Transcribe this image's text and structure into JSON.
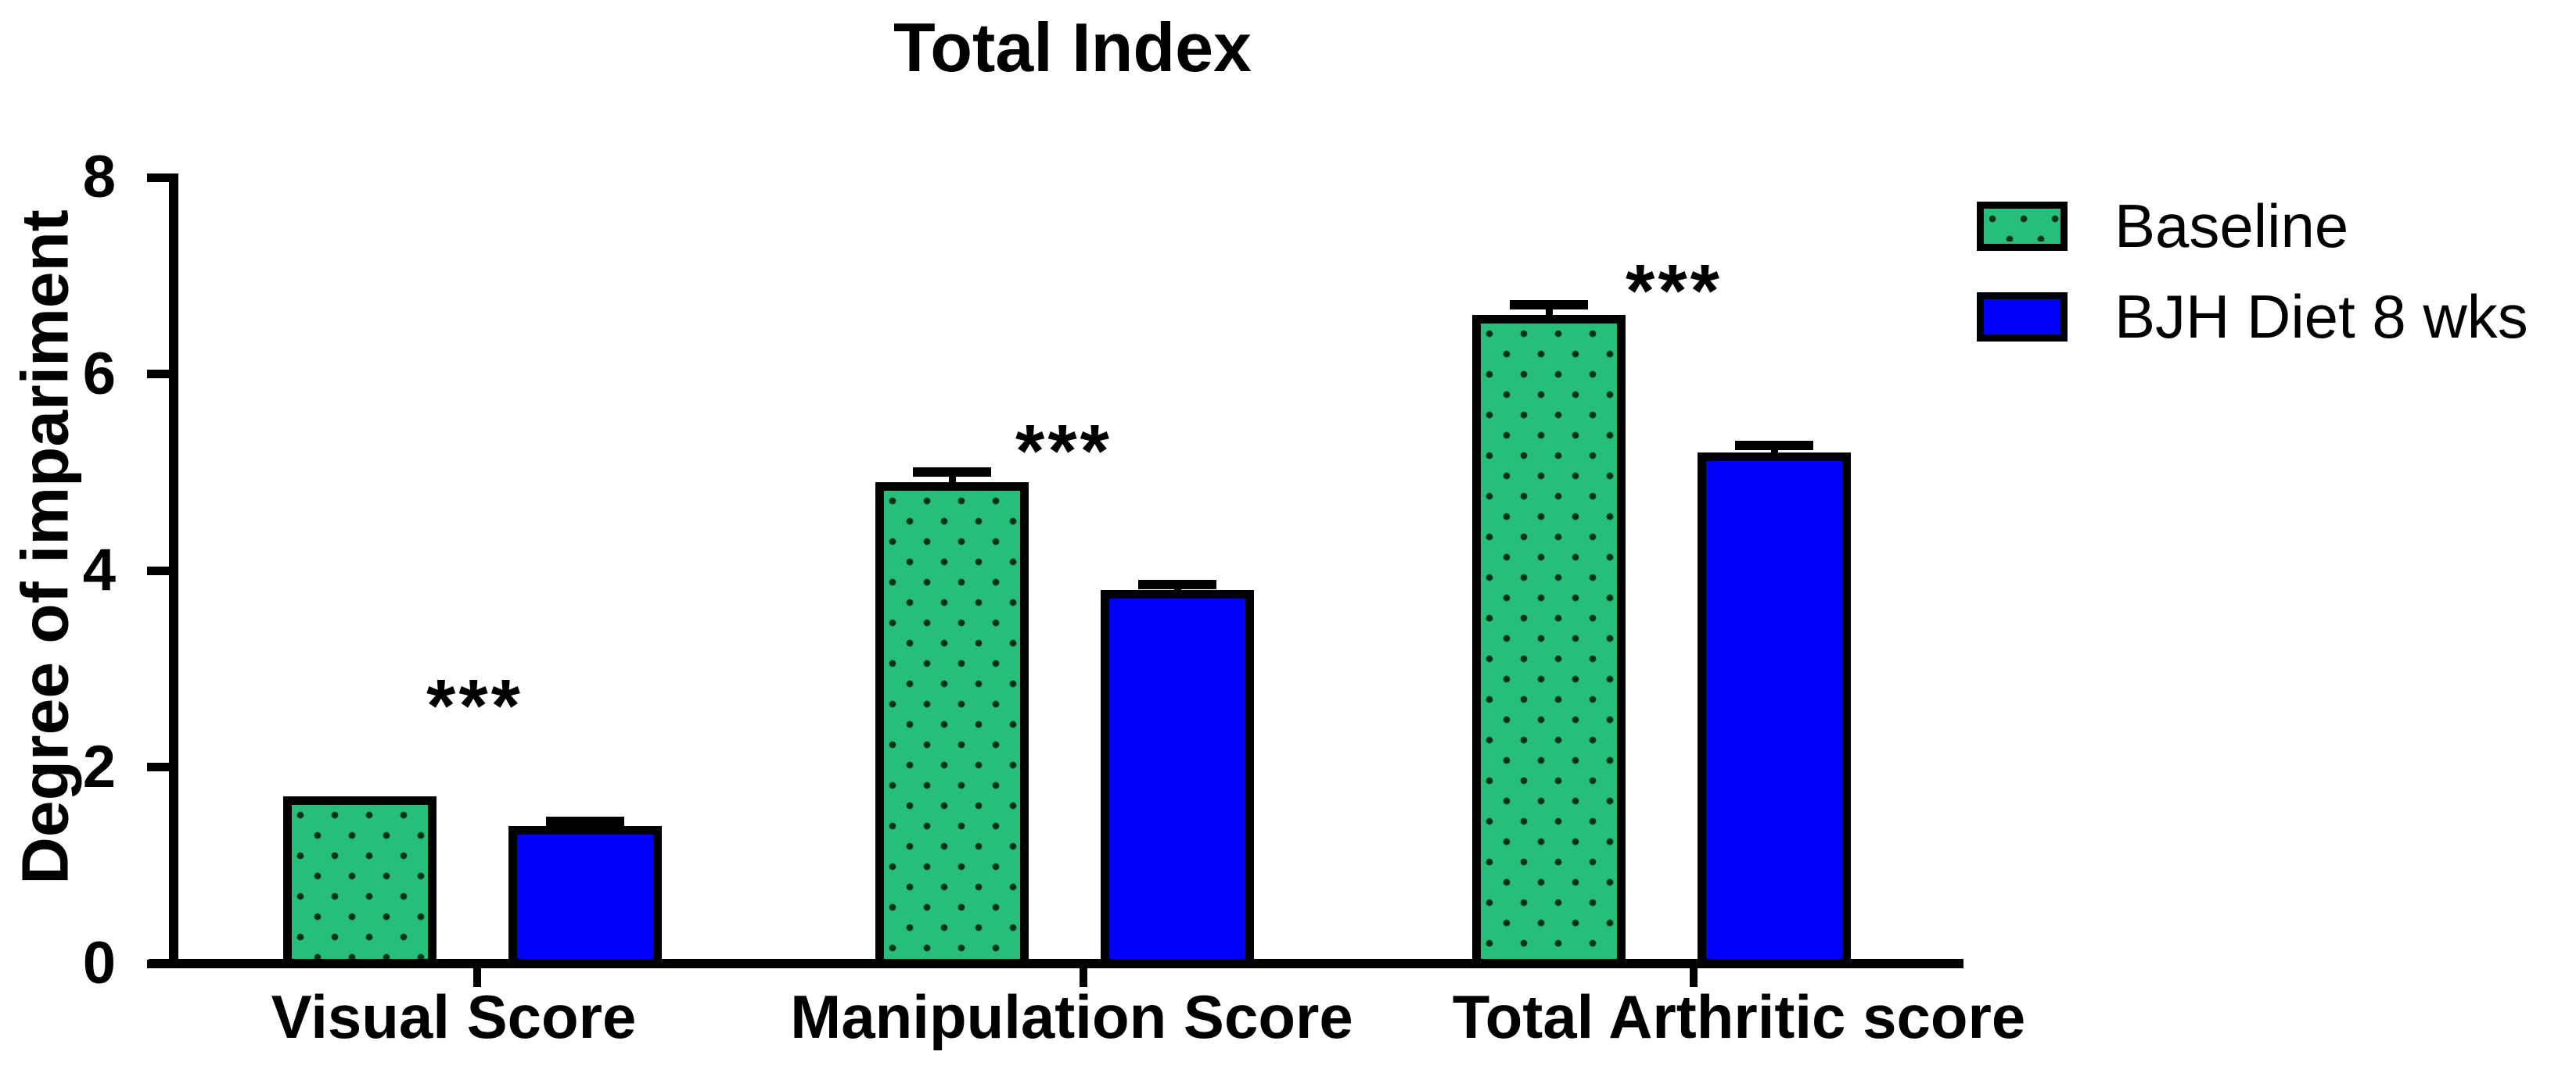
{
  "title": "Total Index",
  "y_axis": {
    "label": "Degree of impariment",
    "ticks": [
      "0",
      "2",
      "4",
      "6",
      "8"
    ]
  },
  "x_axis": {
    "categories": [
      "Visual Score",
      "Manipulation Score",
      "Total Arthritic score"
    ]
  },
  "legend": {
    "entries": [
      {
        "label": "Baseline",
        "color": "#26BE78",
        "pattern": "dots",
        "dot_color": "#05301B"
      },
      {
        "label": "BJH Diet 8 wks",
        "color": "#0000FF",
        "pattern": "solid",
        "dot_color": ""
      }
    ]
  },
  "significance_label": "***",
  "chart_data": {
    "type": "bar",
    "title": "Total Index",
    "xlabel": "",
    "ylabel": "Degree of impariment",
    "ylim": [
      0,
      8
    ],
    "yticks": [
      0,
      2,
      4,
      6,
      8
    ],
    "grid": false,
    "legend_position": "upper right",
    "categories": [
      "Visual Score",
      "Manipulation Score",
      "Total Arthritic score"
    ],
    "series": [
      {
        "name": "Baseline",
        "values": [
          1.7,
          4.9,
          6.6
        ],
        "errors": [
          0,
          0.1,
          0.1
        ],
        "color": "#26BE78",
        "pattern": "dots",
        "dot_color": "#05301B"
      },
      {
        "name": "BJH Diet 8 wks",
        "values": [
          1.4,
          3.8,
          5.2
        ],
        "errors": [
          0.05,
          0.06,
          0.07
        ],
        "color": "#0000FF",
        "pattern": "solid",
        "dot_color": ""
      }
    ],
    "annotations": [
      {
        "label": "***",
        "category_index": 0
      },
      {
        "label": "***",
        "category_index": 1
      },
      {
        "label": "***",
        "category_index": 2
      }
    ]
  }
}
